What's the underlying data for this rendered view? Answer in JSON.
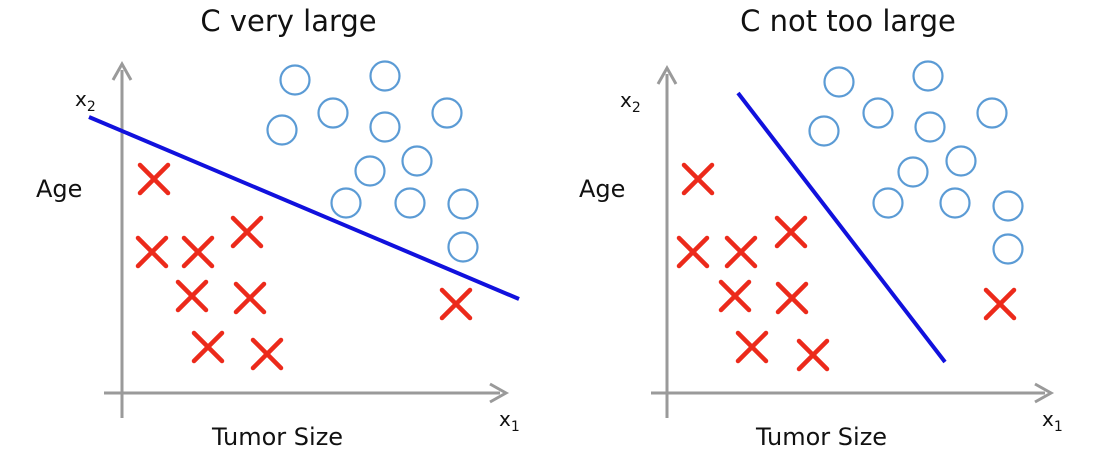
{
  "panels": [
    {
      "title": "C very large",
      "y_label": "Age",
      "x_label": "Tumor Size",
      "x_axis_symbol": "x",
      "x_axis_subscript": "1",
      "y_axis_symbol": "x",
      "y_axis_subscript": "2",
      "circles": [
        [
          295,
          80
        ],
        [
          385,
          76
        ],
        [
          333,
          113
        ],
        [
          447,
          113
        ],
        [
          282,
          130
        ],
        [
          385,
          127
        ],
        [
          417,
          161
        ],
        [
          370,
          171
        ],
        [
          346,
          203
        ],
        [
          410,
          203
        ],
        [
          463,
          204
        ],
        [
          463,
          247
        ]
      ],
      "crosses": [
        [
          154,
          179
        ],
        [
          152,
          252
        ],
        [
          198,
          252
        ],
        [
          247,
          232
        ],
        [
          192,
          296
        ],
        [
          250,
          298
        ],
        [
          208,
          347
        ],
        [
          267,
          354
        ],
        [
          456,
          304
        ]
      ],
      "boundary": [
        [
          89,
          117
        ],
        [
          519,
          299
        ]
      ]
    },
    {
      "title": "C not too large",
      "y_label": "Age",
      "x_label": "Tumor Size",
      "x_axis_symbol": "x",
      "x_axis_subscript": "1",
      "y_axis_symbol": "x",
      "y_axis_subscript": "2",
      "circles": [
        [
          288,
          82
        ],
        [
          377,
          76
        ],
        [
          327,
          113
        ],
        [
          441,
          113
        ],
        [
          273,
          131
        ],
        [
          379,
          127
        ],
        [
          410,
          161
        ],
        [
          362,
          172
        ],
        [
          337,
          203
        ],
        [
          404,
          203
        ],
        [
          457,
          206
        ],
        [
          457,
          249
        ]
      ],
      "crosses": [
        [
          147,
          179
        ],
        [
          142,
          252
        ],
        [
          190,
          252
        ],
        [
          240,
          232
        ],
        [
          184,
          296
        ],
        [
          241,
          298
        ],
        [
          201,
          347
        ],
        [
          262,
          355
        ],
        [
          449,
          304
        ]
      ],
      "boundary": [
        [
          187,
          93
        ],
        [
          394,
          362
        ]
      ]
    }
  ],
  "colors": {
    "circle": "#5b9bd5",
    "cross": "#ec2a1b",
    "boundary": "#1111dd",
    "axis": "#9a9a9a"
  }
}
